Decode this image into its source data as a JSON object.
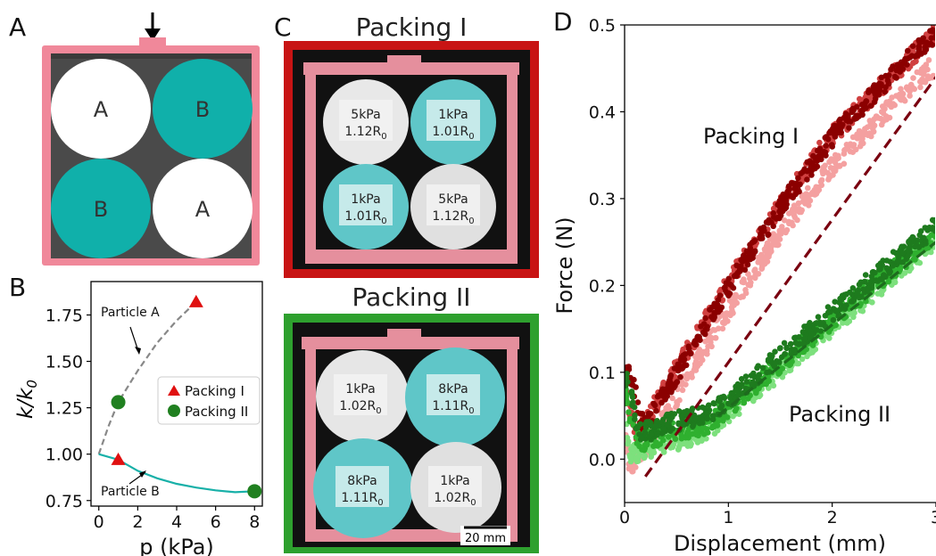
{
  "panels": {
    "a": {
      "letter": "A",
      "circles": [
        "A",
        "B",
        "B",
        "A"
      ]
    },
    "b": {
      "letter": "B"
    },
    "c": {
      "letter": "C"
    },
    "d": {
      "letter": "D"
    }
  },
  "photos": {
    "packing1": {
      "title": "Packing I",
      "particles": [
        {
          "kpa": "5kPa",
          "r": "1.12R",
          "sub": "0"
        },
        {
          "kpa": "1kPa",
          "r": "1.01R",
          "sub": "0"
        },
        {
          "kpa": "1kPa",
          "r": "1.01R",
          "sub": "0"
        },
        {
          "kpa": "5kPa",
          "r": "1.12R",
          "sub": "0"
        }
      ]
    },
    "packing2": {
      "title": "Packing II",
      "particles": [
        {
          "kpa": "1kPa",
          "r": "1.02R",
          "sub": "0"
        },
        {
          "kpa": "8kPa",
          "r": "1.11R",
          "sub": "0"
        },
        {
          "kpa": "8kPa",
          "r": "1.11R",
          "sub": "0"
        },
        {
          "kpa": "1kPa",
          "r": "1.02R",
          "sub": "0"
        }
      ],
      "scalebar": "20 mm"
    }
  },
  "colors": {
    "frame_pink": "#f0889a",
    "teal": "#10b0aa",
    "dark_bg": "#4a4a4a",
    "red_border": "#c81414",
    "green_border": "#2ea02e",
    "packing1_dark": "#8b0000",
    "packing1_mid": "#d04040",
    "packing1_light": "#f4a0a0",
    "packing2_dark": "#1e7b1e",
    "packing2_mid": "#2fb02f",
    "packing2_light": "#7de07d"
  },
  "chart_data": [
    {
      "type": "line",
      "panel": "B",
      "xlabel": "p (kPa)",
      "ylabel": "k/k",
      "ylabel_sub": "0",
      "xlim": [
        -0.4,
        8.4
      ],
      "ylim": [
        0.72,
        1.93
      ],
      "xticks": [
        "0",
        "2",
        "4",
        "6",
        "8"
      ],
      "yticks": [
        "0.75",
        "1.00",
        "1.25",
        "1.50",
        "1.75"
      ],
      "series": [
        {
          "name": "Particle A",
          "style": "dashed",
          "color": "#888888",
          "x": [
            0,
            0.5,
            1,
            2,
            3,
            4,
            5
          ],
          "y": [
            1.0,
            1.15,
            1.28,
            1.45,
            1.6,
            1.72,
            1.82
          ]
        },
        {
          "name": "Particle B",
          "style": "solid",
          "color": "#18b0a8",
          "x": [
            0,
            1,
            2,
            3,
            4,
            5,
            6,
            7,
            8
          ],
          "y": [
            1.0,
            0.97,
            0.91,
            0.87,
            0.84,
            0.82,
            0.805,
            0.795,
            0.8
          ]
        },
        {
          "name": "Packing I",
          "marker": "triangle",
          "color": "#e01010",
          "x": [
            1,
            5
          ],
          "y": [
            0.97,
            1.82
          ]
        },
        {
          "name": "Packing II",
          "marker": "circle",
          "color": "#208020",
          "x": [
            1,
            8
          ],
          "y": [
            1.28,
            0.8
          ]
        }
      ],
      "annotations": [
        "Particle A",
        "Particle B"
      ],
      "legend": [
        "Packing I",
        "Packing II"
      ],
      "legend_position": "center-right"
    },
    {
      "type": "scatter",
      "panel": "D",
      "xlabel": "Displacement (mm)",
      "ylabel": "Force (N)",
      "xlim": [
        0,
        3
      ],
      "ylim": [
        -0.05,
        0.5
      ],
      "xticks": [
        "0",
        "1",
        "2",
        "3"
      ],
      "yticks": [
        "0.0",
        "0.1",
        "0.2",
        "0.3",
        "0.4",
        "0.5"
      ],
      "labels": [
        "Packing I",
        "Packing II"
      ],
      "series": [
        {
          "name": "Packing I",
          "fit": "dashed",
          "color": "#7a0010",
          "x": [
            0,
            0.05,
            0.1,
            0.15,
            0.2,
            0.3,
            0.5,
            1,
            1.5,
            2,
            2.5,
            3
          ],
          "y": [
            0.08,
            0.06,
            0.03,
            0.02,
            0.03,
            0.05,
            0.09,
            0.19,
            0.28,
            0.36,
            0.42,
            0.48
          ],
          "fit_x": [
            0.2,
            3
          ],
          "fit_y": [
            -0.02,
            0.44
          ]
        },
        {
          "name": "Packing II",
          "fit": "dashed",
          "color": "#1e6b1e",
          "x": [
            0,
            0.05,
            0.1,
            0.15,
            0.2,
            0.4,
            0.6,
            0.8,
            1,
            1.5,
            2,
            2.5,
            3
          ],
          "y": [
            0.08,
            0.05,
            0.02,
            0.02,
            0.02,
            0.03,
            0.035,
            0.04,
            0.06,
            0.11,
            0.16,
            0.21,
            0.26
          ],
          "fit_x": [
            0.9,
            3
          ],
          "fit_y": [
            0.05,
            0.25
          ]
        }
      ]
    }
  ]
}
